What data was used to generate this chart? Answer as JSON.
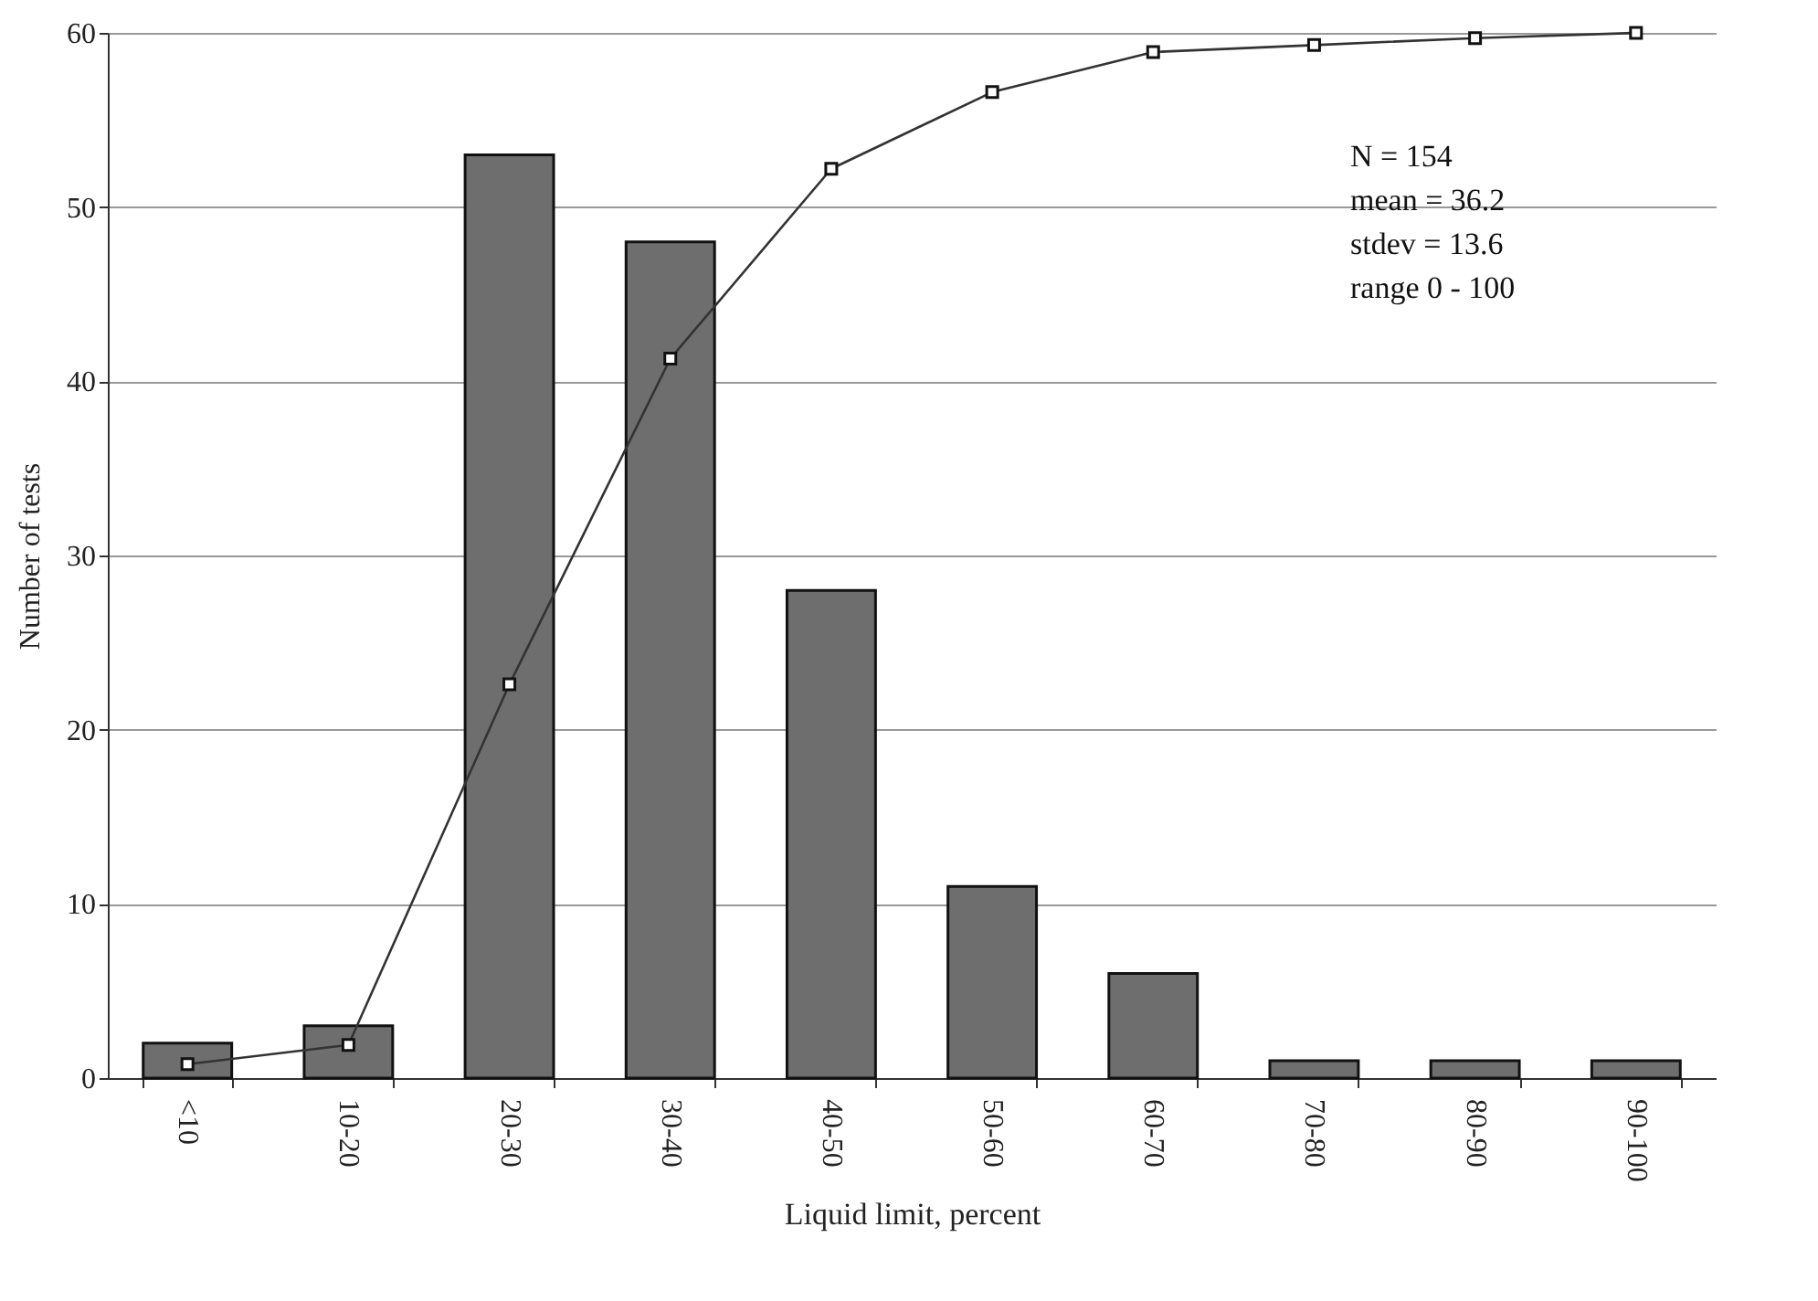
{
  "chart_data": {
    "type": "bar",
    "xlabel": "Liquid limit, percent",
    "ylabel": "Number of tests",
    "categories": [
      "<10",
      "10-20",
      "20-30",
      "30-40",
      "40-50",
      "50-60",
      "60-70",
      "70-80",
      "80-90",
      "90-100"
    ],
    "series": [
      {
        "color": "#6e6e6e",
        "values": [
          2,
          3,
          53,
          48,
          28,
          11,
          6,
          1,
          1,
          1
        ]
      },
      {
        "type": "line",
        "color": "#333333",
        "marker": "square",
        "values": [
          0.8,
          1.9,
          22.6,
          41.3,
          52.2,
          56.6,
          58.9,
          59.3,
          59.7,
          60
        ]
      }
    ],
    "ylim": [
      0,
      60
    ],
    "yticks": [
      0,
      10,
      20,
      30,
      40,
      50,
      60
    ],
    "grid": "y",
    "annotations": [
      "N = 154",
      "mean = 36.2",
      "stdev = 13.6",
      "range 0 - 100"
    ]
  }
}
